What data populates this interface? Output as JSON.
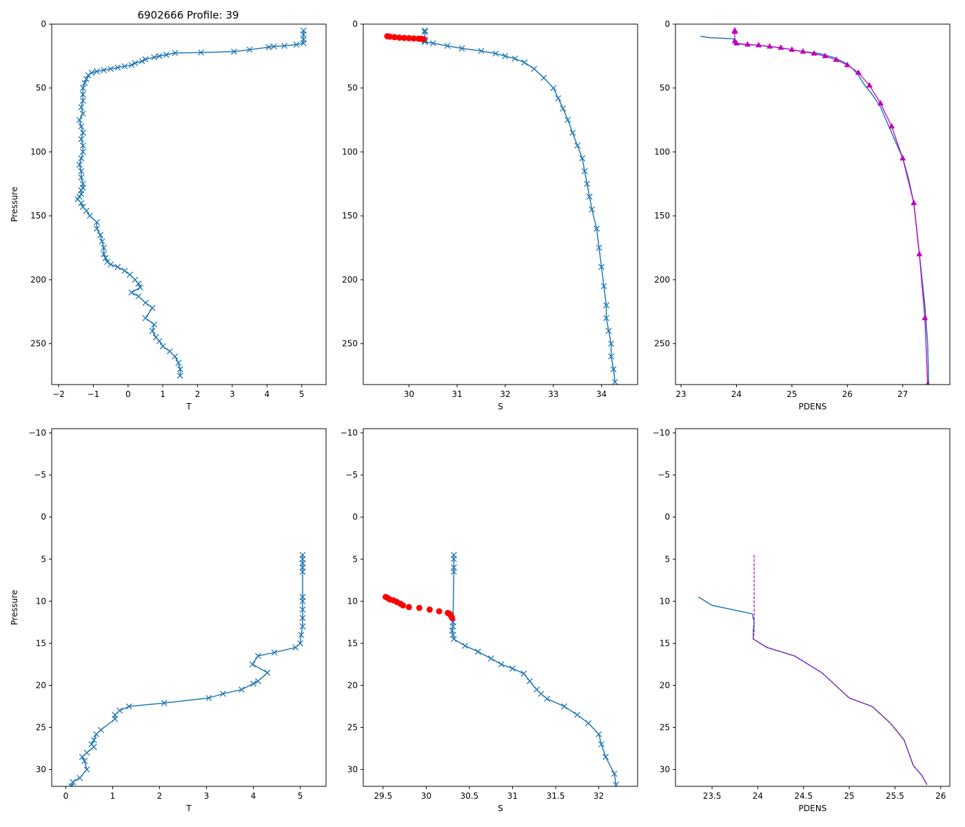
{
  "figure": {
    "title": "6902666 Profile: 39"
  },
  "colors": {
    "line": "#1f77b4",
    "flag_salinity": "#ff0000",
    "flag_density": "#bf00bf",
    "axis": "#000000",
    "background": "#ffffff"
  },
  "chart_data": [
    {
      "id": "t_full",
      "type": "line",
      "marker": "x",
      "xlabel": "T",
      "ylabel": "Pressure",
      "title": "6902666 Profile: 39",
      "xlim": [
        -2.2,
        5.7
      ],
      "ylim": [
        282,
        0
      ],
      "y_inverted": true,
      "xticks": [
        -2,
        -1,
        0,
        1,
        2,
        3,
        4,
        5
      ],
      "yticks": [
        0,
        50,
        100,
        150,
        200,
        250
      ],
      "series": [
        {
          "name": "T",
          "x": [
            5.05,
            5.05,
            5.05,
            5.05,
            4.85,
            4.5,
            4.2,
            4.05,
            3.5,
            3.05,
            2.1,
            1.35,
            1.1,
            0.9,
            0.75,
            0.5,
            0.4,
            0.2,
            0.1,
            -0.1,
            -0.3,
            -0.5,
            -0.7,
            -0.9,
            -1.05,
            -1.15,
            -1.2,
            -1.25,
            -1.3,
            -1.3,
            -1.3,
            -1.35,
            -1.3,
            -1.4,
            -1.35,
            -1.3,
            -1.35,
            -1.3,
            -1.3,
            -1.35,
            -1.4,
            -1.35,
            -1.35,
            -1.3,
            -1.3,
            -1.35,
            -1.35,
            -1.4,
            -1.45,
            -1.35,
            -1.3,
            -1.2,
            -1.1,
            -0.9,
            -0.9,
            -0.8,
            -0.75,
            -0.7,
            -0.7,
            -0.65,
            -0.6,
            -0.5,
            -0.3,
            -0.1,
            0.05,
            0.2,
            0.3,
            0.35,
            0.1,
            0.3,
            0.5,
            0.7,
            0.5,
            0.75,
            0.7,
            0.8,
            0.9,
            1.0,
            1.2,
            1.35,
            1.45,
            1.5,
            1.5
          ],
          "y": [
            5,
            8,
            12,
            15,
            16,
            17,
            17.5,
            18,
            20,
            21.5,
            22.2,
            22.6,
            24,
            25,
            26,
            27.5,
            29,
            30.5,
            32,
            33,
            34,
            35,
            36,
            37,
            38,
            40,
            43,
            46,
            50,
            55,
            60,
            65,
            70,
            75,
            80,
            85,
            90,
            95,
            100,
            105,
            110,
            115,
            120,
            125,
            128,
            130,
            133,
            135,
            137,
            140,
            143,
            146,
            150,
            155,
            160,
            165,
            170,
            175,
            180,
            183,
            186,
            188,
            190,
            193,
            196,
            200,
            203,
            206,
            210,
            213,
            218,
            222,
            230,
            235,
            240,
            245,
            248,
            252,
            256,
            260,
            265,
            270,
            275
          ]
        }
      ]
    },
    {
      "id": "s_full",
      "type": "line",
      "marker": "x",
      "xlabel": "S",
      "ylabel": "",
      "xlim": [
        29.05,
        34.75
      ],
      "ylim": [
        282,
        0
      ],
      "y_inverted": true,
      "xticks": [
        30,
        31,
        32,
        33,
        34
      ],
      "yticks": [
        0,
        50,
        100,
        150,
        200,
        250
      ],
      "series": [
        {
          "name": "S",
          "x": [
            30.33,
            30.33,
            30.33,
            30.33,
            30.33,
            30.5,
            30.8,
            31.1,
            31.5,
            31.8,
            32.0,
            32.2,
            32.4,
            32.6,
            32.8,
            33.0,
            33.1,
            33.2,
            33.3,
            33.4,
            33.5,
            33.6,
            33.65,
            33.7,
            33.75,
            33.8,
            33.9,
            33.95,
            34.0,
            34.05,
            34.1,
            34.1,
            34.15,
            34.2,
            34.2,
            34.25,
            34.28
          ],
          "y": [
            5,
            6,
            12,
            13,
            14,
            15,
            17,
            19,
            21,
            23,
            25,
            27,
            30,
            35,
            42,
            50,
            58,
            66,
            75,
            85,
            95,
            105,
            115,
            125,
            135,
            145,
            160,
            175,
            190,
            205,
            220,
            230,
            240,
            250,
            260,
            270,
            280
          ]
        },
        {
          "name": "flagged S",
          "x": [
            29.55,
            29.6,
            29.7,
            29.8,
            29.9,
            30.0,
            30.1,
            30.2,
            30.25,
            30.3
          ],
          "y": [
            9.5,
            9.8,
            10.2,
            10.6,
            10.8,
            11,
            11.2,
            11.4,
            11.5,
            11.8
          ]
        }
      ]
    },
    {
      "id": "pdens_full",
      "type": "line",
      "marker": "^",
      "xlabel": "PDENS",
      "ylabel": "",
      "xlim": [
        22.9,
        27.85
      ],
      "ylim": [
        282,
        0
      ],
      "y_inverted": true,
      "xticks": [
        23,
        24,
        25,
        26,
        27
      ],
      "yticks": [
        0,
        50,
        100,
        150,
        200,
        250
      ],
      "series": [
        {
          "name": "PDENS",
          "x": [
            23.35,
            23.5,
            23.95,
            23.95,
            24.0,
            24.4,
            24.8,
            25.2,
            25.5,
            25.75,
            25.95,
            26.1,
            26.2,
            26.3,
            26.45,
            26.6,
            26.7,
            26.8,
            26.9,
            27.0,
            27.1,
            27.2,
            27.25,
            27.3,
            27.35,
            27.4,
            27.45,
            27.47
          ],
          "y": [
            9.5,
            10.5,
            11.5,
            14.5,
            15.5,
            16.5,
            18.5,
            21.5,
            23,
            26,
            30,
            35,
            40,
            47,
            55,
            65,
            75,
            85,
            95,
            105,
            120,
            140,
            160,
            180,
            200,
            220,
            250,
            282
          ]
        },
        {
          "name": "flagged PDENS",
          "x": [
            23.97,
            23.97,
            23.97,
            24.0,
            24.2,
            24.4,
            24.6,
            24.8,
            25.0,
            25.2,
            25.4,
            25.6,
            25.8,
            26.0,
            26.2,
            26.4,
            26.6,
            26.8,
            27.0,
            27.2,
            27.3,
            27.4,
            27.45
          ],
          "y": [
            5,
            6,
            13.5,
            15,
            16,
            16.5,
            17.5,
            18.5,
            20,
            21.5,
            23,
            25,
            28,
            32,
            38,
            48,
            62,
            80,
            105,
            140,
            180,
            230,
            282
          ]
        }
      ]
    },
    {
      "id": "t_zoom",
      "type": "line",
      "marker": "x",
      "xlabel": "T",
      "ylabel": "Pressure",
      "xlim": [
        -0.3,
        5.55
      ],
      "ylim": [
        32,
        -10.5
      ],
      "y_inverted": true,
      "xticks": [
        0,
        1,
        2,
        3,
        4,
        5
      ],
      "yticks": [
        -10,
        -5,
        0,
        5,
        10,
        15,
        20,
        25,
        30
      ],
      "series": [
        {
          "name": "T",
          "x": [
            5.05,
            5.05,
            5.05,
            5.05,
            5.05,
            5.05,
            5.05,
            5.05,
            5.05,
            5.05,
            5.02,
            5.0,
            4.9,
            4.45,
            4.1,
            3.98,
            4.3,
            4.1,
            4.0,
            3.75,
            3.35,
            3.05,
            2.1,
            1.35,
            1.15,
            1.05,
            1.05,
            0.75,
            0.65,
            0.6,
            0.55,
            0.6,
            0.45,
            0.35,
            0.4,
            0.45,
            0.3,
            0.15,
            0.12
          ],
          "y": [
            4.5,
            5,
            5.5,
            6,
            6.5,
            9.5,
            10,
            11,
            12,
            13,
            14,
            15,
            15.5,
            16.1,
            16.5,
            17.5,
            18.5,
            19.5,
            19.8,
            20.5,
            21,
            21.5,
            22.1,
            22.5,
            23,
            23.5,
            24,
            25.3,
            25.8,
            26.5,
            27,
            27.3,
            28,
            28.5,
            29,
            30,
            31,
            31.5,
            32
          ]
        }
      ]
    },
    {
      "id": "s_zoom",
      "type": "line",
      "marker": "x",
      "xlabel": "S",
      "ylabel": "",
      "xlim": [
        29.27,
        32.45
      ],
      "ylim": [
        32,
        -10.5
      ],
      "y_inverted": true,
      "xticks": [
        29.5,
        30.0,
        30.5,
        31.0,
        31.5,
        32.0
      ],
      "yticks": [
        -10,
        -5,
        0,
        5,
        10,
        15,
        20,
        25,
        30
      ],
      "series": [
        {
          "name": "S",
          "x": [
            30.32,
            30.32,
            30.32,
            30.32,
            30.31,
            30.31,
            30.3,
            30.31,
            30.32,
            30.45,
            30.6,
            30.75,
            30.87,
            31.0,
            31.13,
            31.2,
            31.28,
            31.33,
            31.4,
            31.6,
            31.75,
            31.88,
            32.0,
            32.03,
            32.08,
            32.18,
            32.2
          ],
          "y": [
            4.5,
            5,
            6,
            6.5,
            12.5,
            13,
            13.5,
            14,
            14.5,
            15.3,
            16,
            16.8,
            17.5,
            18,
            18.6,
            19.5,
            20.5,
            21,
            21.6,
            22.5,
            23.5,
            24.5,
            25.8,
            27,
            28.5,
            30.5,
            31.8
          ]
        },
        {
          "name": "flagged S",
          "x": [
            29.53,
            29.55,
            29.58,
            29.62,
            29.66,
            29.7,
            29.73,
            29.8,
            29.92,
            30.04,
            30.15,
            30.25,
            30.27,
            30.28,
            30.29,
            30.3
          ],
          "y": [
            9.5,
            9.6,
            9.8,
            9.9,
            10.1,
            10.3,
            10.5,
            10.7,
            10.8,
            11,
            11.2,
            11.4,
            11.5,
            11.6,
            11.8,
            12
          ]
        }
      ]
    },
    {
      "id": "pdens_zoom",
      "type": "line",
      "marker": "",
      "xlabel": "PDENS",
      "ylabel": "",
      "xlim": [
        23.1,
        26.1
      ],
      "ylim": [
        32,
        -10.5
      ],
      "y_inverted": true,
      "xticks": [
        23.5,
        24.0,
        24.5,
        25.0,
        25.5,
        26.0
      ],
      "yticks": [
        -10,
        -5,
        0,
        5,
        10,
        15,
        20,
        25,
        30
      ],
      "series": [
        {
          "name": "PDENS",
          "x": [
            23.35,
            23.5,
            23.94,
            23.96,
            23.95,
            23.95,
            24.1,
            24.4,
            24.7,
            24.85,
            25.0,
            25.25,
            25.45,
            25.6,
            25.7,
            25.8,
            25.85
          ],
          "y": [
            9.5,
            10.5,
            11.5,
            12.5,
            13.5,
            14.5,
            15.5,
            16.5,
            18.5,
            20,
            21.5,
            22.5,
            24.5,
            26.5,
            29.5,
            30.8,
            31.8
          ]
        },
        {
          "name": "flagged PDENS",
          "x": [
            23.96,
            23.96,
            23.96,
            23.96,
            23.95,
            24.1,
            24.4,
            24.7,
            24.85,
            25.0,
            25.25,
            25.45,
            25.6,
            25.7,
            25.8,
            25.85
          ],
          "y": [
            4.5,
            6.5,
            12.5,
            13.5,
            14.5,
            15.5,
            16.5,
            18.5,
            20,
            21.5,
            22.5,
            24.5,
            26.5,
            29.5,
            30.8,
            31.8
          ]
        }
      ]
    }
  ]
}
